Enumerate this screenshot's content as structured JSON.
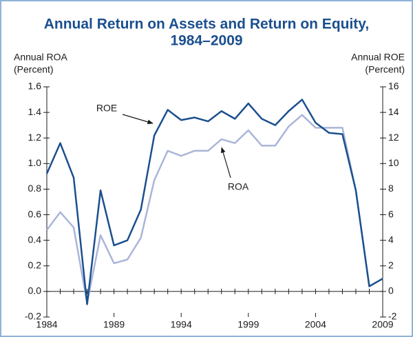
{
  "chart_data": {
    "type": "line",
    "title": [
      "Annual Return on Assets and Return on Equity,",
      "1984–2009"
    ],
    "y_label": [
      "Annual ROA",
      "(Percent)"
    ],
    "y2_label": [
      "Annual ROE",
      "(Percent)"
    ],
    "x": [
      1984,
      1985,
      1986,
      1987,
      1988,
      1989,
      1990,
      1991,
      1992,
      1993,
      1994,
      1995,
      1996,
      1997,
      1998,
      1999,
      2000,
      2001,
      2002,
      2003,
      2004,
      2005,
      2006,
      2007,
      2008,
      2009
    ],
    "series": [
      {
        "name": "ROE",
        "color": "#1b4f8e",
        "axis": "y2",
        "values": [
          9.2,
          11.6,
          8.9,
          -1.0,
          7.9,
          3.6,
          4.0,
          6.4,
          12.2,
          14.2,
          13.4,
          13.6,
          13.3,
          14.1,
          13.5,
          14.7,
          13.5,
          13.0,
          14.1,
          15.0,
          13.2,
          12.4,
          12.3,
          7.9,
          0.4,
          1.0
        ]
      },
      {
        "name": "ROA",
        "color": "#aab5d8",
        "values": [
          0.48,
          0.62,
          0.5,
          -0.09,
          0.44,
          0.22,
          0.25,
          0.42,
          0.87,
          1.1,
          1.06,
          1.1,
          1.1,
          1.19,
          1.16,
          1.26,
          1.14,
          1.14,
          1.29,
          1.38,
          1.28,
          1.28,
          1.28,
          0.79,
          0.04,
          0.1
        ]
      }
    ],
    "xlim": [
      1984,
      2009
    ],
    "xticks": [
      1984,
      1989,
      1994,
      1999,
      2004,
      2009
    ],
    "ylim": [
      -0.2,
      1.6
    ],
    "yticks": [
      -0.2,
      {
        "value": 0,
        "label": "0.0"
      },
      0.2,
      0.4,
      0.6,
      0.8,
      {
        "value": 1,
        "label": "1.0"
      },
      1.2,
      1.4,
      1.6
    ],
    "y2lim": [
      -2,
      16
    ],
    "y2ticks": [
      -2,
      0,
      2,
      4,
      6,
      8,
      10,
      12,
      14,
      16
    ]
  }
}
